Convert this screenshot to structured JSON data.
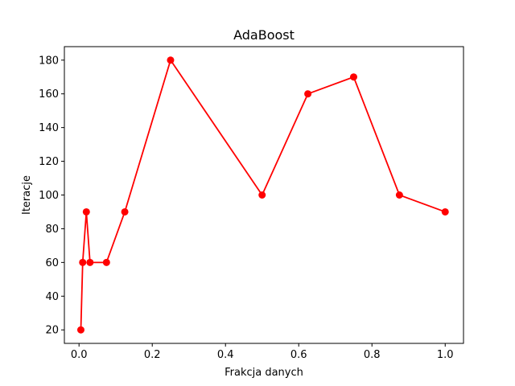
{
  "chart_data": {
    "type": "line",
    "title": "AdaBoost",
    "xlabel": "Frakcja danych",
    "ylabel": "Iteracje",
    "xlim": [
      -0.04,
      1.05
    ],
    "ylim": [
      12,
      188
    ],
    "xticks": [
      0.0,
      0.2,
      0.4,
      0.6,
      0.8,
      1.0
    ],
    "xtick_labels": [
      "0.0",
      "0.2",
      "0.4",
      "0.6",
      "0.8",
      "1.0"
    ],
    "yticks": [
      20,
      40,
      60,
      80,
      100,
      120,
      140,
      160,
      180
    ],
    "ytick_labels": [
      "20",
      "40",
      "60",
      "80",
      "100",
      "120",
      "140",
      "160",
      "180"
    ],
    "grid": false,
    "legend": "none",
    "series": [
      {
        "color": "#ff0000",
        "marker": "circle",
        "x": [
          0.005,
          0.01,
          0.02,
          0.03,
          0.075,
          0.125,
          0.25,
          0.5,
          0.625,
          0.75,
          0.875,
          1.0
        ],
        "y": [
          20,
          60,
          90,
          60,
          60,
          90,
          180,
          100,
          160,
          170,
          100,
          90
        ]
      }
    ]
  }
}
